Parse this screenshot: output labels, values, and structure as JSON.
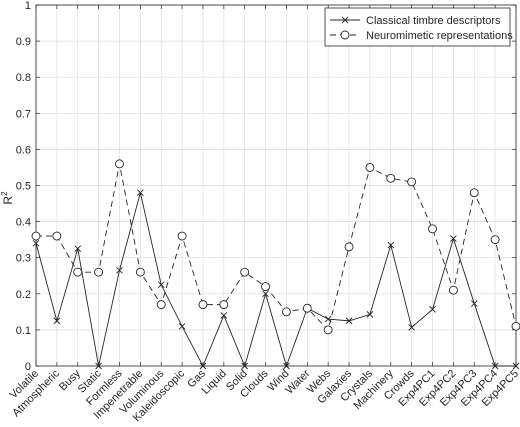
{
  "chart_data": {
    "type": "line",
    "title": "",
    "xlabel": "",
    "ylabel": "R",
    "ylabel_superscript": "2",
    "ylim": [
      0,
      1
    ],
    "yticks": [
      0,
      0.1,
      0.2,
      0.3,
      0.4,
      0.5,
      0.6,
      0.7,
      0.8,
      0.9,
      1
    ],
    "ytick_labels": [
      "0",
      "0.1",
      "0.2",
      "0.3",
      "0.4",
      "0.5",
      "0.6",
      "0.7",
      "0.8",
      "0.9",
      "1"
    ],
    "grid": true,
    "legend_position": "top-right",
    "categories": [
      "Volatile",
      "Atmospheric",
      "Busy",
      "Static",
      "Formless",
      "Impenetrable",
      "Voluminous",
      "Kaleidoscopic",
      "Gas",
      "Liquid",
      "Solid",
      "Clouds",
      "Wind",
      "Water",
      "Webs",
      "Galaxies",
      "Crystals",
      "Machinery",
      "Crowds",
      "Exp4PC1",
      "Exp4PC2",
      "Exp4PC3",
      "Exp4PC4",
      "Exp4PC5"
    ],
    "series": [
      {
        "name": "Classical timbre descriptors",
        "color": "#262626",
        "line_style": "solid",
        "marker": "x",
        "values": [
          0.34,
          0.125,
          0.325,
          0.0,
          0.265,
          0.48,
          0.225,
          0.11,
          0.0,
          0.14,
          0.0,
          0.2,
          0.0,
          0.16,
          0.13,
          0.125,
          0.143,
          0.335,
          0.107,
          0.157,
          0.353,
          0.173,
          0.0,
          0.0
        ]
      },
      {
        "name": "Neuromimetic representations",
        "color": "#262626",
        "line_style": "dashed",
        "marker": "o",
        "values": [
          0.36,
          0.36,
          0.26,
          0.26,
          0.56,
          0.26,
          0.17,
          0.36,
          0.17,
          0.17,
          0.26,
          0.22,
          0.15,
          0.16,
          0.1,
          0.33,
          0.55,
          0.52,
          0.51,
          0.38,
          0.21,
          0.48,
          0.35,
          0.11
        ]
      }
    ]
  }
}
